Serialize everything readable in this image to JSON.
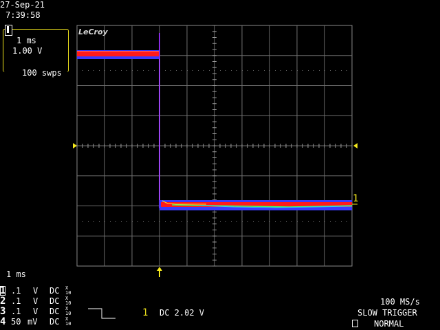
{
  "header": {
    "date": "27-Sep-21",
    "time": "7:39:58"
  },
  "trace_box": {
    "channel": "1",
    "timebase": "1 ms",
    "volts_div": "1.00 V",
    "sweeps": "100 swps"
  },
  "brand": "LeCroy",
  "bottom_timebase": "1 ms",
  "channels": [
    {
      "num": "1",
      "scale": ".1",
      "unit": "V",
      "coupling": "DC",
      "x_top": "X",
      "x_bot": "10"
    },
    {
      "num": "2",
      "scale": ".1",
      "unit": "V",
      "coupling": "DC",
      "x_top": "X",
      "x_bot": "10"
    },
    {
      "num": "3",
      "scale": ".1",
      "unit": "V",
      "coupling": "DC",
      "x_top": "X",
      "x_bot": "10"
    },
    {
      "num": "4",
      "scale": "50",
      "unit": "mV",
      "coupling": "DC",
      "x_top": "X",
      "x_bot": "10"
    }
  ],
  "trigger": {
    "source": "1",
    "coupling_level": "DC 2.02 V",
    "sample_rate": "100 MS/s",
    "mode": "SLOW TRIGGER",
    "state": "NORMAL"
  },
  "trace_marker": "1",
  "colors": {
    "grid": "#8a8a8a",
    "accent": "#f4e81c",
    "trace_red": "#ff1a1a",
    "trace_blue": "#3a3aff",
    "trace_purple": "#8a2be2"
  }
}
